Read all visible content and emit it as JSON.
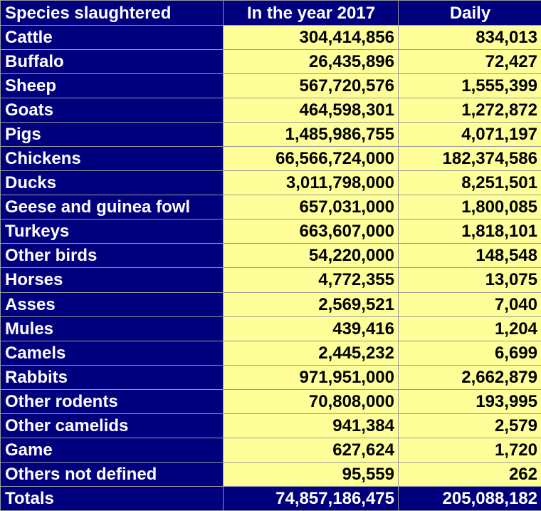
{
  "headers": {
    "species": "Species slaughtered",
    "year": "In the year 2017",
    "daily": "Daily"
  },
  "rows": [
    {
      "species": "Cattle",
      "year": "304,414,856",
      "daily": "834,013"
    },
    {
      "species": "Buffalo",
      "year": "26,435,896",
      "daily": "72,427"
    },
    {
      "species": "Sheep",
      "year": "567,720,576",
      "daily": "1,555,399"
    },
    {
      "species": "Goats",
      "year": "464,598,301",
      "daily": "1,272,872"
    },
    {
      "species": "Pigs",
      "year": "1,485,986,755",
      "daily": "4,071,197"
    },
    {
      "species": "Chickens",
      "year": "66,566,724,000",
      "daily": "182,374,586"
    },
    {
      "species": "Ducks",
      "year": "3,011,798,000",
      "daily": "8,251,501"
    },
    {
      "species": "Geese and guinea fowl",
      "year": "657,031,000",
      "daily": "1,800,085"
    },
    {
      "species": "Turkeys",
      "year": "663,607,000",
      "daily": "1,818,101"
    },
    {
      "species": "Other birds",
      "year": "54,220,000",
      "daily": "148,548"
    },
    {
      "species": "Horses",
      "year": "4,772,355",
      "daily": "13,075"
    },
    {
      "species": "Asses",
      "year": "2,569,521",
      "daily": "7,040"
    },
    {
      "species": "Mules",
      "year": "439,416",
      "daily": "1,204"
    },
    {
      "species": "Camels",
      "year": "2,445,232",
      "daily": "6,699"
    },
    {
      "species": "Rabbits",
      "year": "971,951,000",
      "daily": "2,662,879"
    },
    {
      "species": "Other rodents",
      "year": "70,808,000",
      "daily": "193,995"
    },
    {
      "species": "Other camelids",
      "year": "941,384",
      "daily": "2,579"
    },
    {
      "species": "Game",
      "year": "627,624",
      "daily": "1,720"
    },
    {
      "species": "Others not defined",
      "year": "95,559",
      "daily": "262"
    }
  ],
  "totals": {
    "label": "Totals",
    "year": "74,857,186,475",
    "daily": "205,088,182"
  },
  "colors": {
    "header_bg": "#00007e",
    "header_text": "#ffffff",
    "value_bg": "#ffff99",
    "value_text": "#000000"
  }
}
